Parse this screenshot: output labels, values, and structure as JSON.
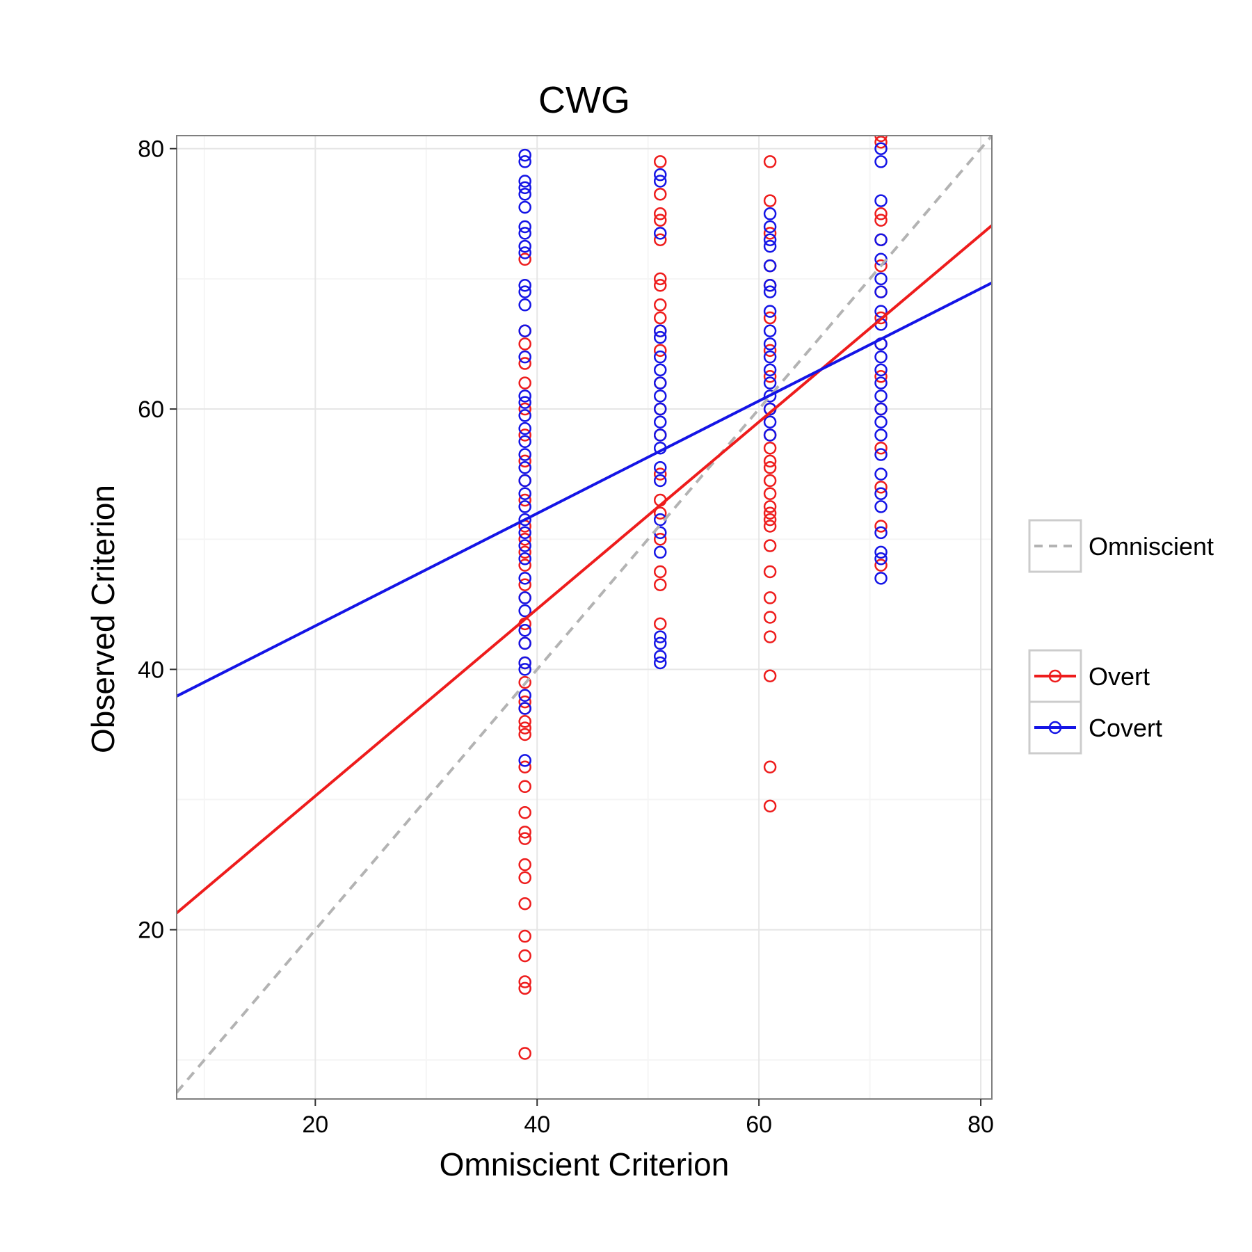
{
  "chart_data": {
    "type": "scatter",
    "title": "CWG",
    "xlabel": "Omniscient Criterion",
    "ylabel": "Observed Criterion",
    "xlim": [
      7.5,
      81
    ],
    "ylim": [
      7,
      81
    ],
    "x_ticks": [
      20,
      40,
      60,
      80
    ],
    "y_ticks": [
      20,
      40,
      60,
      80
    ],
    "grid": true,
    "legend_position": "right",
    "reference_line": {
      "name": "Omniscient",
      "slope": 1,
      "intercept": 0,
      "color": "#b3b3b3",
      "dash": true
    },
    "series": [
      {
        "name": "Overt",
        "color": "#ee1c1c",
        "fit": {
          "slope": 0.7185,
          "intercept": 15.9
        },
        "points": [
          [
            38.9,
            10.5
          ],
          [
            38.9,
            15.5
          ],
          [
            38.9,
            16.0
          ],
          [
            38.9,
            18.0
          ],
          [
            38.9,
            19.5
          ],
          [
            38.9,
            22.0
          ],
          [
            38.9,
            24.0
          ],
          [
            38.9,
            25.0
          ],
          [
            38.9,
            27.0
          ],
          [
            38.9,
            27.5
          ],
          [
            38.9,
            29.0
          ],
          [
            38.9,
            31.0
          ],
          [
            38.9,
            32.5
          ],
          [
            38.9,
            35.0
          ],
          [
            38.9,
            35.5
          ],
          [
            38.9,
            36.0
          ],
          [
            38.9,
            37.0
          ],
          [
            38.9,
            37.5
          ],
          [
            38.9,
            39.0
          ],
          [
            38.9,
            40.5
          ],
          [
            38.9,
            42.0
          ],
          [
            38.9,
            43.5
          ],
          [
            38.9,
            45.5
          ],
          [
            38.9,
            46.5
          ],
          [
            38.9,
            48.0
          ],
          [
            38.9,
            49.0
          ],
          [
            38.9,
            50.0
          ],
          [
            38.9,
            51.0
          ],
          [
            38.9,
            53.0
          ],
          [
            38.9,
            54.5
          ],
          [
            38.9,
            56.0
          ],
          [
            38.9,
            58.0
          ],
          [
            38.9,
            60.0
          ],
          [
            38.9,
            62.0
          ],
          [
            38.9,
            63.5
          ],
          [
            38.9,
            65.0
          ],
          [
            38.9,
            66.0
          ],
          [
            38.9,
            71.5
          ],
          [
            51.1,
            43.5
          ],
          [
            51.1,
            46.5
          ],
          [
            51.1,
            47.5
          ],
          [
            51.1,
            50.0
          ],
          [
            51.1,
            52.0
          ],
          [
            51.1,
            53.0
          ],
          [
            51.1,
            55.0
          ],
          [
            51.1,
            58.0
          ],
          [
            51.1,
            60.0
          ],
          [
            51.1,
            62.0
          ],
          [
            51.1,
            64.5
          ],
          [
            51.1,
            66.0
          ],
          [
            51.1,
            67.0
          ],
          [
            51.1,
            68.0
          ],
          [
            51.1,
            69.5
          ],
          [
            51.1,
            70.0
          ],
          [
            51.1,
            73.0
          ],
          [
            51.1,
            74.5
          ],
          [
            51.1,
            75.0
          ],
          [
            51.1,
            76.5
          ],
          [
            51.1,
            79.0
          ],
          [
            61.0,
            29.5
          ],
          [
            61.0,
            32.5
          ],
          [
            61.0,
            39.5
          ],
          [
            61.0,
            42.5
          ],
          [
            61.0,
            44.0
          ],
          [
            61.0,
            45.5
          ],
          [
            61.0,
            47.5
          ],
          [
            61.0,
            49.5
          ],
          [
            61.0,
            51.0
          ],
          [
            61.0,
            51.5
          ],
          [
            61.0,
            52.0
          ],
          [
            61.0,
            52.5
          ],
          [
            61.0,
            53.5
          ],
          [
            61.0,
            54.5
          ],
          [
            61.0,
            55.5
          ],
          [
            61.0,
            56.0
          ],
          [
            61.0,
            57.0
          ],
          [
            61.0,
            58.0
          ],
          [
            61.0,
            60.0
          ],
          [
            61.0,
            62.5
          ],
          [
            61.0,
            64.5
          ],
          [
            61.0,
            67.0
          ],
          [
            61.0,
            69.5
          ],
          [
            61.0,
            71.0
          ],
          [
            61.0,
            73.5
          ],
          [
            61.0,
            76.0
          ],
          [
            61.0,
            79.0
          ],
          [
            71.0,
            48.0
          ],
          [
            71.0,
            51.0
          ],
          [
            71.0,
            54.0
          ],
          [
            71.0,
            57.0
          ],
          [
            71.0,
            60.0
          ],
          [
            71.0,
            62.5
          ],
          [
            71.0,
            65.0
          ],
          [
            71.0,
            67.0
          ],
          [
            71.0,
            69.0
          ],
          [
            71.0,
            71.0
          ],
          [
            71.0,
            73.0
          ],
          [
            71.0,
            74.5
          ],
          [
            71.0,
            75.0
          ],
          [
            71.0,
            80.5
          ],
          [
            71.0,
            81.0
          ]
        ]
      },
      {
        "name": "Covert",
        "color": "#1414e6",
        "fit": {
          "slope": 0.432,
          "intercept": 34.7
        },
        "points": [
          [
            38.9,
            33.0
          ],
          [
            38.9,
            37.0
          ],
          [
            38.9,
            38.0
          ],
          [
            38.9,
            40.0
          ],
          [
            38.9,
            40.5
          ],
          [
            38.9,
            42.0
          ],
          [
            38.9,
            43.0
          ],
          [
            38.9,
            44.5
          ],
          [
            38.9,
            45.5
          ],
          [
            38.9,
            47.0
          ],
          [
            38.9,
            48.5
          ],
          [
            38.9,
            49.5
          ],
          [
            38.9,
            50.5
          ],
          [
            38.9,
            51.5
          ],
          [
            38.9,
            52.5
          ],
          [
            38.9,
            53.5
          ],
          [
            38.9,
            54.5
          ],
          [
            38.9,
            55.5
          ],
          [
            38.9,
            56.5
          ],
          [
            38.9,
            57.5
          ],
          [
            38.9,
            58.5
          ],
          [
            38.9,
            59.5
          ],
          [
            38.9,
            60.5
          ],
          [
            38.9,
            61.0
          ],
          [
            38.9,
            64.0
          ],
          [
            38.9,
            66.0
          ],
          [
            38.9,
            68.0
          ],
          [
            38.9,
            69.0
          ],
          [
            38.9,
            69.5
          ],
          [
            38.9,
            72.0
          ],
          [
            38.9,
            72.5
          ],
          [
            38.9,
            73.5
          ],
          [
            38.9,
            74.0
          ],
          [
            38.9,
            75.5
          ],
          [
            38.9,
            76.5
          ],
          [
            38.9,
            77.0
          ],
          [
            38.9,
            77.5
          ],
          [
            38.9,
            79.0
          ],
          [
            38.9,
            79.5
          ],
          [
            51.1,
            40.5
          ],
          [
            51.1,
            41.0
          ],
          [
            51.1,
            42.0
          ],
          [
            51.1,
            42.5
          ],
          [
            51.1,
            49.0
          ],
          [
            51.1,
            50.5
          ],
          [
            51.1,
            51.5
          ],
          [
            51.1,
            54.5
          ],
          [
            51.1,
            55.5
          ],
          [
            51.1,
            57.0
          ],
          [
            51.1,
            58.0
          ],
          [
            51.1,
            59.0
          ],
          [
            51.1,
            60.0
          ],
          [
            51.1,
            61.0
          ],
          [
            51.1,
            62.0
          ],
          [
            51.1,
            63.0
          ],
          [
            51.1,
            64.0
          ],
          [
            51.1,
            65.5
          ],
          [
            51.1,
            66.0
          ],
          [
            51.1,
            73.5
          ],
          [
            51.1,
            77.5
          ],
          [
            51.1,
            78.0
          ],
          [
            61.0,
            58.0
          ],
          [
            61.0,
            59.0
          ],
          [
            61.0,
            60.0
          ],
          [
            61.0,
            61.0
          ],
          [
            61.0,
            62.0
          ],
          [
            61.0,
            63.0
          ],
          [
            61.0,
            64.0
          ],
          [
            61.0,
            65.0
          ],
          [
            61.0,
            66.0
          ],
          [
            61.0,
            67.5
          ],
          [
            61.0,
            69.0
          ],
          [
            61.0,
            69.5
          ],
          [
            61.0,
            71.0
          ],
          [
            61.0,
            72.5
          ],
          [
            61.0,
            73.0
          ],
          [
            61.0,
            74.0
          ],
          [
            61.0,
            75.0
          ],
          [
            71.0,
            47.0
          ],
          [
            71.0,
            48.5
          ],
          [
            71.0,
            49.0
          ],
          [
            71.0,
            50.5
          ],
          [
            71.0,
            52.5
          ],
          [
            71.0,
            53.5
          ],
          [
            71.0,
            55.0
          ],
          [
            71.0,
            56.5
          ],
          [
            71.0,
            58.0
          ],
          [
            71.0,
            59.0
          ],
          [
            71.0,
            60.0
          ],
          [
            71.0,
            61.0
          ],
          [
            71.0,
            62.0
          ],
          [
            71.0,
            63.0
          ],
          [
            71.0,
            64.0
          ],
          [
            71.0,
            65.0
          ],
          [
            71.0,
            66.5
          ],
          [
            71.0,
            67.5
          ],
          [
            71.0,
            69.0
          ],
          [
            71.0,
            70.0
          ],
          [
            71.0,
            71.5
          ],
          [
            71.0,
            73.0
          ],
          [
            71.0,
            76.0
          ],
          [
            71.0,
            79.0
          ],
          [
            71.0,
            80.0
          ]
        ]
      }
    ]
  }
}
